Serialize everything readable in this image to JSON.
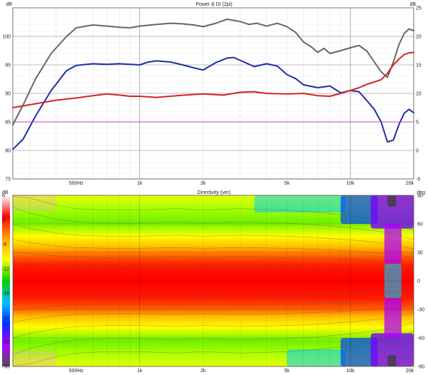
{
  "chart_data": [
    {
      "type": "line",
      "title": "Power & DI (2pi)",
      "ylabel_left": "dB",
      "ylabel_right": "dB",
      "x_scale": "log",
      "xlim": [
        250,
        20000
      ],
      "ylim_left": [
        75,
        105
      ],
      "ylim_right": [
        -5,
        25
      ],
      "x_ticks": [
        {
          "value": 500,
          "label": "500Hz"
        },
        {
          "value": 1000,
          "label": "1k"
        },
        {
          "value": 2000,
          "label": "2k"
        },
        {
          "value": 5000,
          "label": "5k"
        },
        {
          "value": 10000,
          "label": "10k"
        },
        {
          "value": 20000,
          "label": "20k"
        }
      ],
      "y_ticks_left": [
        75,
        80,
        85,
        90,
        95,
        100
      ],
      "y_ticks_right": [
        -5,
        0,
        5,
        10,
        15,
        20,
        25
      ],
      "grid": true,
      "series": [
        {
          "color": "#666666",
          "axis": "left",
          "x": [
            250,
            280,
            320,
            380,
            450,
            500,
            600,
            700,
            800,
            900,
            1000,
            1200,
            1400,
            1600,
            1800,
            2000,
            2300,
            2600,
            3000,
            3300,
            3600,
            4000,
            4500,
            5000,
            5500,
            6000,
            6500,
            7000,
            7500,
            8000,
            9000,
            10000,
            11000,
            12000,
            13000,
            14000,
            15000,
            16000,
            17000,
            18000,
            19000,
            20000
          ],
          "y": [
            84.5,
            88,
            92.5,
            97,
            100,
            101.5,
            102,
            101.8,
            101.6,
            101.5,
            101.8,
            102.1,
            102.3,
            102.2,
            102.0,
            101.7,
            102.3,
            103.0,
            102.6,
            102.1,
            102.3,
            101.8,
            102.3,
            101.7,
            100.7,
            99.0,
            98.2,
            97.2,
            97.9,
            97.0,
            97.5,
            98.0,
            98.4,
            97.4,
            95.5,
            93.8,
            92.8,
            95.5,
            98.5,
            100.5,
            101.3,
            101.0
          ]
        },
        {
          "color": "#1c2fa8",
          "axis": "left",
          "x": [
            250,
            280,
            320,
            380,
            450,
            500,
            600,
            700,
            800,
            900,
            1000,
            1100,
            1200,
            1400,
            1600,
            1800,
            2000,
            2300,
            2600,
            2800,
            3000,
            3500,
            4000,
            4500,
            5000,
            5500,
            6000,
            7000,
            8000,
            9000,
            10000,
            11000,
            12000,
            13000,
            14000,
            15000,
            16000,
            17000,
            18000,
            19000,
            20000
          ],
          "y": [
            80.2,
            82,
            86,
            90.5,
            94,
            94.9,
            95.2,
            95.1,
            95.2,
            95.1,
            95.0,
            95.5,
            95.7,
            95.5,
            95.0,
            94.5,
            94.1,
            95.4,
            96.2,
            96.3,
            95.8,
            94.7,
            95.2,
            94.8,
            93.3,
            92.6,
            91.5,
            91.0,
            91.3,
            90.1,
            90.5,
            90.3,
            88.7,
            87.2,
            85.0,
            81.5,
            81.8,
            84.5,
            86.5,
            87.2,
            86.6
          ]
        },
        {
          "color": "#d42424",
          "axis": "right",
          "x": [
            250,
            300,
            400,
            500,
            600,
            700,
            800,
            900,
            1000,
            1200,
            1500,
            2000,
            2500,
            3000,
            3500,
            4000,
            5000,
            6000,
            7000,
            8000,
            9000,
            10000,
            11000,
            12000,
            13000,
            14000,
            15000,
            16000,
            17000,
            18000,
            19000,
            20000
          ],
          "y": [
            7.5,
            8.0,
            8.8,
            9.2,
            9.6,
            9.9,
            9.7,
            9.5,
            9.5,
            9.3,
            9.6,
            9.9,
            9.7,
            10.2,
            10.3,
            10.0,
            9.9,
            10.0,
            9.6,
            9.5,
            10.0,
            10.5,
            11.0,
            11.6,
            12.0,
            12.4,
            13.5,
            15.0,
            16.0,
            16.8,
            17.1,
            17.2
          ]
        },
        {
          "color": "#c040c0",
          "axis": "right",
          "x": [
            250,
            20000
          ],
          "y": [
            5,
            5
          ]
        }
      ]
    },
    {
      "type": "heatmap",
      "title": "Directivity (ver)",
      "ylabel_left": "dB",
      "ylabel_right": "deg",
      "x_scale": "log",
      "xlim": [
        250,
        20000
      ],
      "ylim": [
        -90,
        90
      ],
      "x_ticks": [
        {
          "value": 500,
          "label": "500Hz"
        },
        {
          "value": 1000,
          "label": "1k"
        },
        {
          "value": 2000,
          "label": "2k"
        },
        {
          "value": 5000,
          "label": "5k"
        },
        {
          "value": 10000,
          "label": "10k"
        },
        {
          "value": 20000,
          "label": "20k"
        }
      ],
      "y_ticks_right": [
        90,
        60,
        30,
        0,
        -30,
        -60,
        -90
      ],
      "colorbar_ticks": [
        6,
        0,
        -6,
        -12,
        -18,
        -24,
        -30,
        -36
      ],
      "colorbar_range": [
        -36,
        6
      ],
      "colorbar_colors": [
        "#ffffff",
        "#ff0000",
        "#ffa000",
        "#ffff00",
        "#00d000",
        "#00c0ff",
        "#0030ff",
        "#b000ff",
        "#505050"
      ]
    }
  ]
}
